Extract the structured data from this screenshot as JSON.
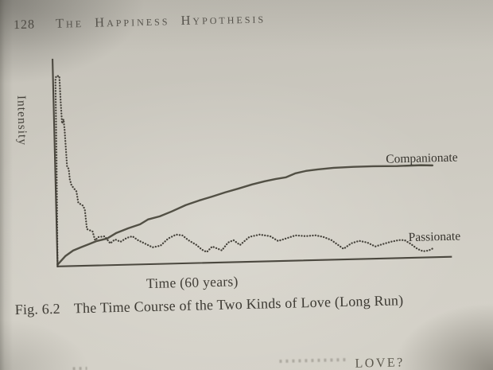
{
  "page": {
    "number": "128",
    "running_title": "The Happiness Hypothesis"
  },
  "figure_caption": {
    "label": "Fig. 6.2",
    "title": "The Time Course of the Two Kinds of Love (Long Run)"
  },
  "next_line_fragment": "LOVE?",
  "colors": {
    "page_background": "#cbc8bf",
    "page_edge_strip": "#e2d9c1",
    "ink": "#45423b"
  },
  "chart_data": {
    "type": "line",
    "title": "",
    "xlabel": "Time (60 years)",
    "ylabel": "Intensity",
    "x_range_years": [
      0,
      60
    ],
    "ylim": [
      0,
      100
    ],
    "grid": false,
    "axis_ticks": "none",
    "legend_position": "labels-at-line-ends",
    "series": [
      {
        "name": "Passionate",
        "line_style": "dotted",
        "points": [
          [
            0,
            0
          ],
          [
            0.24,
            52
          ],
          [
            0.36,
            90
          ],
          [
            0.48,
            92
          ],
          [
            0.97,
            92
          ],
          [
            1.09,
            79
          ],
          [
            1.21,
            69
          ],
          [
            1.45,
            71
          ],
          [
            1.58,
            66
          ],
          [
            1.82,
            48
          ],
          [
            2.06,
            47
          ],
          [
            2.18,
            42
          ],
          [
            2.42,
            39
          ],
          [
            3.15,
            36
          ],
          [
            3.39,
            30.5
          ],
          [
            4.12,
            29
          ],
          [
            4.36,
            27
          ],
          [
            4.61,
            17.7
          ],
          [
            5.45,
            16.5
          ],
          [
            5.82,
            12.2
          ],
          [
            6.3,
            13.7
          ],
          [
            7.27,
            14
          ],
          [
            8.12,
            10.5
          ],
          [
            8.85,
            12.4
          ],
          [
            9.7,
            11.2
          ],
          [
            10.67,
            13
          ],
          [
            11.52,
            13.7
          ],
          [
            12.36,
            11.7
          ],
          [
            13.33,
            10.1
          ],
          [
            14.55,
            8.1
          ],
          [
            15.76,
            8.8
          ],
          [
            16.97,
            12.2
          ],
          [
            18.18,
            14
          ],
          [
            19.15,
            13.5
          ],
          [
            20,
            11.2
          ],
          [
            21.21,
            8.8
          ],
          [
            22.06,
            6.4
          ],
          [
            22.79,
            5.2
          ],
          [
            23.64,
            7.8
          ],
          [
            24.24,
            7
          ],
          [
            25.09,
            5.8
          ],
          [
            26.06,
            9.5
          ],
          [
            26.91,
            10.6
          ],
          [
            27.88,
            8.2
          ],
          [
            29.33,
            12
          ],
          [
            30.91,
            13
          ],
          [
            32.48,
            12.1
          ],
          [
            33.7,
            9.7
          ],
          [
            34.91,
            10.8
          ],
          [
            36.36,
            12.2
          ],
          [
            37.94,
            11.7
          ],
          [
            39.39,
            12
          ],
          [
            40.61,
            11.1
          ],
          [
            41.82,
            9.5
          ],
          [
            43.64,
            5.1
          ],
          [
            44.85,
            7.7
          ],
          [
            46.06,
            8.8
          ],
          [
            47.27,
            7.9
          ],
          [
            48.48,
            5.9
          ],
          [
            49.7,
            7
          ],
          [
            50.91,
            8
          ],
          [
            52.12,
            8.7
          ],
          [
            52.97,
            8.6
          ],
          [
            53.94,
            6.6
          ],
          [
            54.91,
            4.2
          ],
          [
            55.76,
            3
          ],
          [
            56.61,
            3.3
          ],
          [
            57.33,
            4.4
          ]
        ]
      },
      {
        "name": "Companionate",
        "line_style": "solid",
        "points": [
          [
            0,
            0.8
          ],
          [
            1.21,
            4.9
          ],
          [
            2.42,
            7.5
          ],
          [
            3.64,
            9
          ],
          [
            4.85,
            10.4
          ],
          [
            6.06,
            11.8
          ],
          [
            7.64,
            12.9
          ],
          [
            9.09,
            15.5
          ],
          [
            10.91,
            17.6
          ],
          [
            12.73,
            19.4
          ],
          [
            13.94,
            21.6
          ],
          [
            15.76,
            23
          ],
          [
            17.58,
            25.2
          ],
          [
            19.76,
            28.1
          ],
          [
            21.82,
            30.2
          ],
          [
            23.88,
            32
          ],
          [
            25.82,
            33.8
          ],
          [
            27.88,
            35.5
          ],
          [
            29.94,
            37.3
          ],
          [
            31.88,
            38.7
          ],
          [
            33.58,
            39.7
          ],
          [
            35.15,
            40.4
          ],
          [
            36.61,
            42.2
          ],
          [
            38.18,
            43.2
          ],
          [
            40,
            43.8
          ],
          [
            42.42,
            44.4
          ],
          [
            45.45,
            44.6
          ],
          [
            48.48,
            44.7
          ],
          [
            52.12,
            44.5
          ],
          [
            55.76,
            44.6
          ],
          [
            57.5,
            44.4
          ]
        ]
      }
    ]
  }
}
